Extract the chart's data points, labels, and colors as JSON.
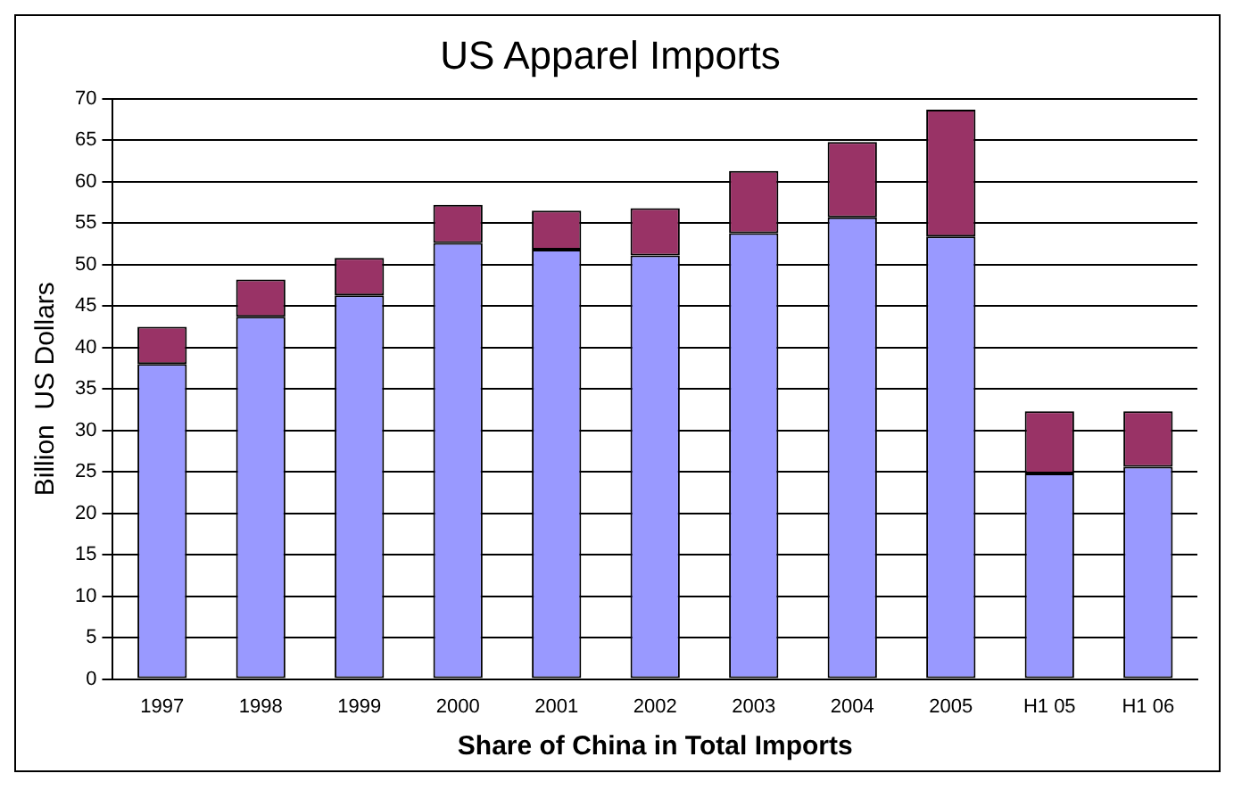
{
  "chart_data": {
    "type": "bar",
    "title": "US Apparel Imports",
    "xlabel": "Share of China in Total Imports",
    "ylabel": "Billion  US Dollars",
    "categories": [
      "1997",
      "1998",
      "1999",
      "2000",
      "2001",
      "2002",
      "2003",
      "2004",
      "2005",
      "H1 05",
      "H1 06"
    ],
    "stacked": true,
    "series": [
      {
        "color": "#9999ff",
        "values": [
          38,
          43.7,
          46.3,
          52.6,
          51.8,
          51.1,
          53.8,
          55.7,
          53.4,
          24.8,
          25.6
        ]
      },
      {
        "color": "#993366",
        "values": [
          4.5,
          4.5,
          4.5,
          4.6,
          4.7,
          5.7,
          7.5,
          9.1,
          15.3,
          7.5,
          6.7
        ]
      }
    ],
    "ylim": [
      0,
      70
    ],
    "yticks": [
      0,
      5,
      10,
      15,
      20,
      25,
      30,
      35,
      40,
      45,
      50,
      55,
      60,
      65,
      70
    ],
    "grid": "y",
    "legend": false
  }
}
